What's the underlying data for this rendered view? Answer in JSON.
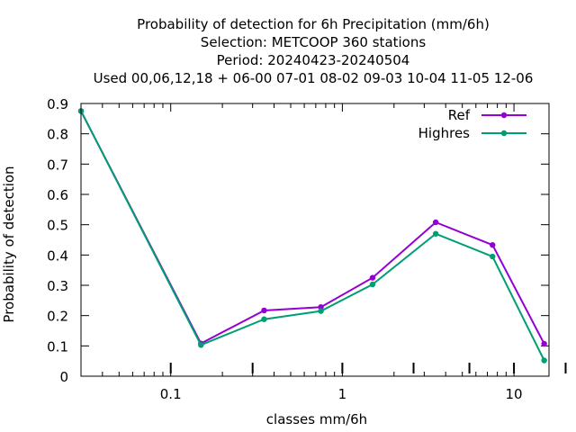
{
  "chart_data": {
    "type": "line",
    "title_lines": [
      "Probability of detection  for 6h Precipitation (mm/6h)",
      "Selection: METCOOP    360 stations",
      "Period: 20240423-20240504",
      "Used  00,06,12,18 + 06-00 07-01 08-02 09-03 10-04 11-05 12-06"
    ],
    "xlabel": "classes mm/6h",
    "ylabel": "Probability of detection",
    "x_scale": "log",
    "xlim": [
      0.03,
      16
    ],
    "ylim": [
      0,
      0.9
    ],
    "x_ticks": [
      {
        "value": 0.1,
        "label": "0.1"
      },
      {
        "value": 1,
        "label": "1"
      },
      {
        "value": 10,
        "label": "10"
      }
    ],
    "y_ticks": [
      {
        "value": 0,
        "label": "0"
      },
      {
        "value": 0.1,
        "label": "0.1"
      },
      {
        "value": 0.2,
        "label": "0.2"
      },
      {
        "value": 0.3,
        "label": "0.3"
      },
      {
        "value": 0.4,
        "label": "0.4"
      },
      {
        "value": 0.5,
        "label": "0.5"
      },
      {
        "value": 0.6,
        "label": "0.6"
      },
      {
        "value": 0.7,
        "label": "0.7"
      },
      {
        "value": 0.8,
        "label": "0.8"
      },
      {
        "value": 0.9,
        "label": "0.9"
      }
    ],
    "legend_position": "top-right",
    "grid": false,
    "x": [
      0.03,
      0.15,
      0.35,
      0.75,
      1.5,
      3.5,
      7.5,
      15
    ],
    "series": [
      {
        "name": "Ref",
        "color": "#9400d3",
        "values": [
          0.875,
          0.108,
          0.217,
          0.228,
          0.325,
          0.508,
          0.433,
          0.107
        ]
      },
      {
        "name": "Highres",
        "color": "#009e73",
        "values": [
          0.875,
          0.103,
          0.188,
          0.215,
          0.303,
          0.47,
          0.395,
          0.052
        ]
      }
    ]
  }
}
